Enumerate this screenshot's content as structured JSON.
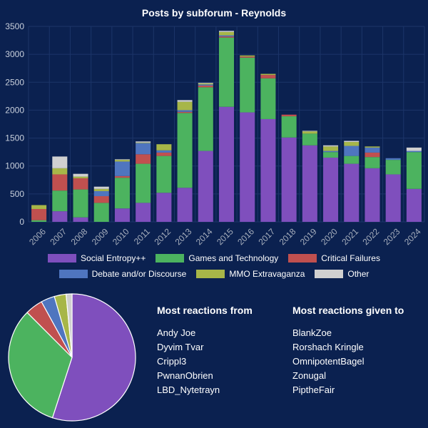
{
  "chart_data": [
    {
      "type": "bar",
      "stacked": true,
      "title": "Posts by subforum - Reynolds",
      "categories": [
        "2006",
        "2007",
        "2008",
        "2009",
        "2010",
        "2011",
        "2012",
        "2013",
        "2014",
        "2015",
        "2016",
        "2017",
        "2018",
        "2019",
        "2020",
        "2021",
        "2022",
        "2023",
        "2024"
      ],
      "ylim": [
        0,
        3500
      ],
      "yticks": [
        0,
        500,
        1000,
        1500,
        2000,
        2500,
        3000,
        3500
      ],
      "grid": true,
      "legend_position": "bottom",
      "series": [
        {
          "name": "Social Entropy++",
          "color": "#7f4fbd",
          "values": [
            0,
            190,
            80,
            0,
            240,
            340,
            520,
            610,
            1270,
            2060,
            1960,
            1840,
            1510,
            1370,
            1150,
            1040,
            960,
            850,
            590
          ]
        },
        {
          "name": "Games and Technology",
          "color": "#4cb35f",
          "values": [
            30,
            370,
            500,
            340,
            550,
            700,
            660,
            1340,
            1140,
            1240,
            980,
            730,
            380,
            210,
            100,
            140,
            200,
            260,
            660
          ]
        },
        {
          "name": "Critical Failures",
          "color": "#c0504f",
          "values": [
            200,
            290,
            200,
            120,
            30,
            170,
            60,
            20,
            30,
            20,
            20,
            60,
            30,
            0,
            0,
            0,
            80,
            0,
            0
          ]
        },
        {
          "name": "Debate and/or Discourse",
          "color": "#4f75bf",
          "values": [
            0,
            0,
            0,
            90,
            260,
            200,
            40,
            30,
            20,
            20,
            0,
            0,
            0,
            0,
            20,
            180,
            90,
            30,
            20
          ]
        },
        {
          "name": "MMO Extravaganza",
          "color": "#a7b648",
          "values": [
            70,
            110,
            30,
            40,
            30,
            10,
            110,
            150,
            20,
            60,
            20,
            20,
            0,
            40,
            80,
            70,
            20,
            0,
            0
          ]
        },
        {
          "name": "Other",
          "color": "#d0d0d0",
          "values": [
            0,
            210,
            50,
            40,
            10,
            20,
            0,
            30,
            10,
            20,
            0,
            0,
            0,
            10,
            20,
            20,
            0,
            0,
            60
          ]
        }
      ]
    },
    {
      "type": "pie",
      "series": [
        {
          "name": "Social Entropy++",
          "color": "#7f4fbd",
          "value": 55
        },
        {
          "name": "Games and Technology",
          "color": "#4cb35f",
          "value": 32.5
        },
        {
          "name": "Critical Failures",
          "color": "#c0504f",
          "value": 4.5
        },
        {
          "name": "Debate and/or Discourse",
          "color": "#4f75bf",
          "value": 3.5
        },
        {
          "name": "MMO Extravaganza",
          "color": "#a7b648",
          "value": 3
        },
        {
          "name": "Other",
          "color": "#d0d0d0",
          "value": 1.5
        }
      ]
    }
  ],
  "panels": {
    "from": {
      "title": "Most reactions from",
      "names": [
        "Andy Joe",
        "Dyvim Tvar",
        "Crippl3",
        "PwnanObrien",
        "LBD_Nytetrayn"
      ]
    },
    "given": {
      "title": "Most reactions given to",
      "names": [
        "BlankZoe",
        "Rorshach Kringle",
        "OmnipotentBagel",
        "Zonugal",
        "PiptheFair"
      ]
    }
  }
}
